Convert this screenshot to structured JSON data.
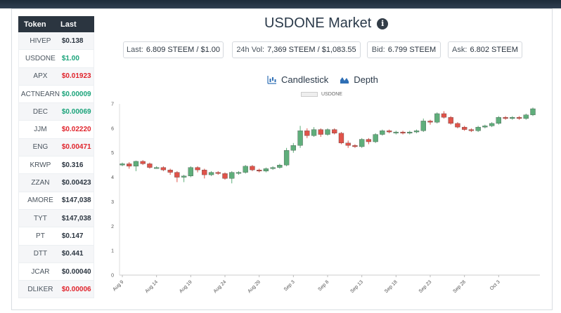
{
  "token_table": {
    "headers": [
      "Token",
      "Last"
    ],
    "rows": [
      {
        "token": "HIVEP",
        "last": "$0.138",
        "trend": "flat"
      },
      {
        "token": "USDONE",
        "last": "$1.00",
        "trend": "up"
      },
      {
        "token": "APX",
        "last": "$0.01923",
        "trend": "down"
      },
      {
        "token": "ACTNEARN",
        "last": "$0.00009",
        "trend": "up"
      },
      {
        "token": "DEC",
        "last": "$0.00069",
        "trend": "up"
      },
      {
        "token": "JJM",
        "last": "$0.02220",
        "trend": "down"
      },
      {
        "token": "ENG",
        "last": "$0.00471",
        "trend": "down"
      },
      {
        "token": "KRWP",
        "last": "$0.316",
        "trend": "flat"
      },
      {
        "token": "ZZAN",
        "last": "$0.00423",
        "trend": "flat"
      },
      {
        "token": "AMORE",
        "last": "$147,038",
        "trend": "flat"
      },
      {
        "token": "TYT",
        "last": "$147,038",
        "trend": "flat"
      },
      {
        "token": "PT",
        "last": "$0.147",
        "trend": "flat"
      },
      {
        "token": "DTT",
        "last": "$0.441",
        "trend": "flat"
      },
      {
        "token": "JCAR",
        "last": "$0.00040",
        "trend": "flat"
      },
      {
        "token": "DLIKER",
        "last": "$0.00006",
        "trend": "down"
      }
    ]
  },
  "market": {
    "title": "USDONE Market",
    "info_icon": "info-icon",
    "stats": [
      {
        "label": "Last:",
        "value": "6.809 STEEM / $1.00"
      },
      {
        "label": "24h Vol:",
        "value": "7,369 STEEM / $1,083.55"
      },
      {
        "label": "Bid:",
        "value": "6.799 STEEM"
      },
      {
        "label": "Ask:",
        "value": "6.802 STEEM"
      }
    ],
    "modes": [
      {
        "label": "Candlestick",
        "icon": "candlestick-icon"
      },
      {
        "label": "Depth",
        "icon": "depth-chart-icon"
      }
    ]
  },
  "colors": {
    "up": "#5fae7b",
    "down": "#e0534a",
    "header_bg": "#2b3540"
  },
  "chart_data": {
    "type": "candlestick",
    "legend": [
      "USDONE"
    ],
    "ylim": [
      0,
      7
    ],
    "yticks": [
      0,
      1,
      2,
      3,
      4,
      5,
      6,
      7
    ],
    "xticks": [
      "Aug 9",
      "Aug 14",
      "Aug 19",
      "Aug 24",
      "Aug 29",
      "Sep 3",
      "Sep 8",
      "Sep 13",
      "Sep 18",
      "Sep 23",
      "Sep 28",
      "Oct 3"
    ],
    "candles": [
      {
        "o": 4.5,
        "c": 4.55,
        "h": 4.6,
        "l": 4.45
      },
      {
        "o": 4.55,
        "c": 4.45,
        "h": 4.62,
        "l": 4.35
      },
      {
        "o": 4.45,
        "c": 4.65,
        "h": 4.68,
        "l": 4.25
      },
      {
        "o": 4.65,
        "c": 4.55,
        "h": 4.7,
        "l": 4.5
      },
      {
        "o": 4.55,
        "c": 4.4,
        "h": 4.6,
        "l": 4.35
      },
      {
        "o": 4.4,
        "c": 4.4,
        "h": 4.45,
        "l": 4.35
      },
      {
        "o": 4.4,
        "c": 4.3,
        "h": 4.45,
        "l": 4.25
      },
      {
        "o": 4.3,
        "c": 4.2,
        "h": 4.35,
        "l": 4.1
      },
      {
        "o": 4.2,
        "c": 4.0,
        "h": 4.25,
        "l": 3.8
      },
      {
        "o": 4.0,
        "c": 4.05,
        "h": 4.1,
        "l": 3.8
      },
      {
        "o": 4.05,
        "c": 4.4,
        "h": 4.45,
        "l": 4.0
      },
      {
        "o": 4.4,
        "c": 4.3,
        "h": 4.45,
        "l": 4.2
      },
      {
        "o": 4.3,
        "c": 4.1,
        "h": 4.35,
        "l": 3.95
      },
      {
        "o": 4.1,
        "c": 4.2,
        "h": 4.25,
        "l": 4.05
      },
      {
        "o": 4.2,
        "c": 4.15,
        "h": 4.25,
        "l": 4.1
      },
      {
        "o": 4.15,
        "c": 3.95,
        "h": 4.2,
        "l": 3.9
      },
      {
        "o": 3.95,
        "c": 4.2,
        "h": 4.25,
        "l": 3.75
      },
      {
        "o": 4.2,
        "c": 4.2,
        "h": 4.25,
        "l": 4.1
      },
      {
        "o": 4.2,
        "c": 4.45,
        "h": 4.5,
        "l": 4.15
      },
      {
        "o": 4.45,
        "c": 4.3,
        "h": 4.5,
        "l": 4.25
      },
      {
        "o": 4.3,
        "c": 4.25,
        "h": 4.35,
        "l": 4.2
      },
      {
        "o": 4.25,
        "c": 4.35,
        "h": 4.4,
        "l": 4.2
      },
      {
        "o": 4.35,
        "c": 4.4,
        "h": 4.45,
        "l": 4.3
      },
      {
        "o": 4.4,
        "c": 4.5,
        "h": 4.55,
        "l": 4.35
      },
      {
        "o": 4.5,
        "c": 5.1,
        "h": 5.2,
        "l": 4.45
      },
      {
        "o": 5.1,
        "c": 5.3,
        "h": 5.4,
        "l": 5.0
      },
      {
        "o": 5.3,
        "c": 5.9,
        "h": 6.1,
        "l": 5.2
      },
      {
        "o": 5.9,
        "c": 5.7,
        "h": 6.0,
        "l": 5.6
      },
      {
        "o": 5.7,
        "c": 5.95,
        "h": 6.05,
        "l": 5.65
      },
      {
        "o": 5.95,
        "c": 5.75,
        "h": 6.0,
        "l": 5.65
      },
      {
        "o": 5.75,
        "c": 5.95,
        "h": 6.0,
        "l": 5.7
      },
      {
        "o": 5.95,
        "c": 5.8,
        "h": 6.0,
        "l": 5.75
      },
      {
        "o": 5.8,
        "c": 5.4,
        "h": 5.85,
        "l": 5.35
      },
      {
        "o": 5.4,
        "c": 5.3,
        "h": 5.5,
        "l": 5.2
      },
      {
        "o": 5.3,
        "c": 5.25,
        "h": 5.35,
        "l": 5.2
      },
      {
        "o": 5.25,
        "c": 5.55,
        "h": 5.6,
        "l": 5.2
      },
      {
        "o": 5.55,
        "c": 5.45,
        "h": 5.6,
        "l": 5.35
      },
      {
        "o": 5.45,
        "c": 5.75,
        "h": 5.8,
        "l": 5.4
      },
      {
        "o": 5.75,
        "c": 5.9,
        "h": 5.95,
        "l": 5.7
      },
      {
        "o": 5.9,
        "c": 5.85,
        "h": 5.95,
        "l": 5.8
      },
      {
        "o": 5.85,
        "c": 5.85,
        "h": 5.9,
        "l": 5.75
      },
      {
        "o": 5.85,
        "c": 5.8,
        "h": 5.9,
        "l": 5.75
      },
      {
        "o": 5.8,
        "c": 5.85,
        "h": 5.9,
        "l": 5.75
      },
      {
        "o": 5.85,
        "c": 5.9,
        "h": 5.95,
        "l": 5.8
      },
      {
        "o": 5.9,
        "c": 6.3,
        "h": 6.4,
        "l": 5.85
      },
      {
        "o": 6.3,
        "c": 6.25,
        "h": 6.35,
        "l": 6.15
      },
      {
        "o": 6.25,
        "c": 6.6,
        "h": 6.65,
        "l": 6.2
      },
      {
        "o": 6.6,
        "c": 6.45,
        "h": 6.7,
        "l": 6.4
      },
      {
        "o": 6.45,
        "c": 6.2,
        "h": 6.5,
        "l": 6.15
      },
      {
        "o": 6.2,
        "c": 6.05,
        "h": 6.25,
        "l": 6.0
      },
      {
        "o": 6.05,
        "c": 5.95,
        "h": 6.1,
        "l": 5.9
      },
      {
        "o": 5.95,
        "c": 5.9,
        "h": 6.0,
        "l": 5.85
      },
      {
        "o": 5.9,
        "c": 6.05,
        "h": 6.1,
        "l": 5.85
      },
      {
        "o": 6.05,
        "c": 6.1,
        "h": 6.15,
        "l": 6.0
      },
      {
        "o": 6.1,
        "c": 6.2,
        "h": 6.25,
        "l": 6.05
      },
      {
        "o": 6.2,
        "c": 6.45,
        "h": 6.5,
        "l": 6.15
      },
      {
        "o": 6.45,
        "c": 6.4,
        "h": 6.5,
        "l": 6.35
      },
      {
        "o": 6.4,
        "c": 6.45,
        "h": 6.5,
        "l": 6.35
      },
      {
        "o": 6.45,
        "c": 6.4,
        "h": 6.5,
        "l": 6.35
      },
      {
        "o": 6.4,
        "c": 6.55,
        "h": 6.6,
        "l": 6.35
      },
      {
        "o": 6.55,
        "c": 6.8,
        "h": 6.85,
        "l": 6.5
      }
    ]
  }
}
